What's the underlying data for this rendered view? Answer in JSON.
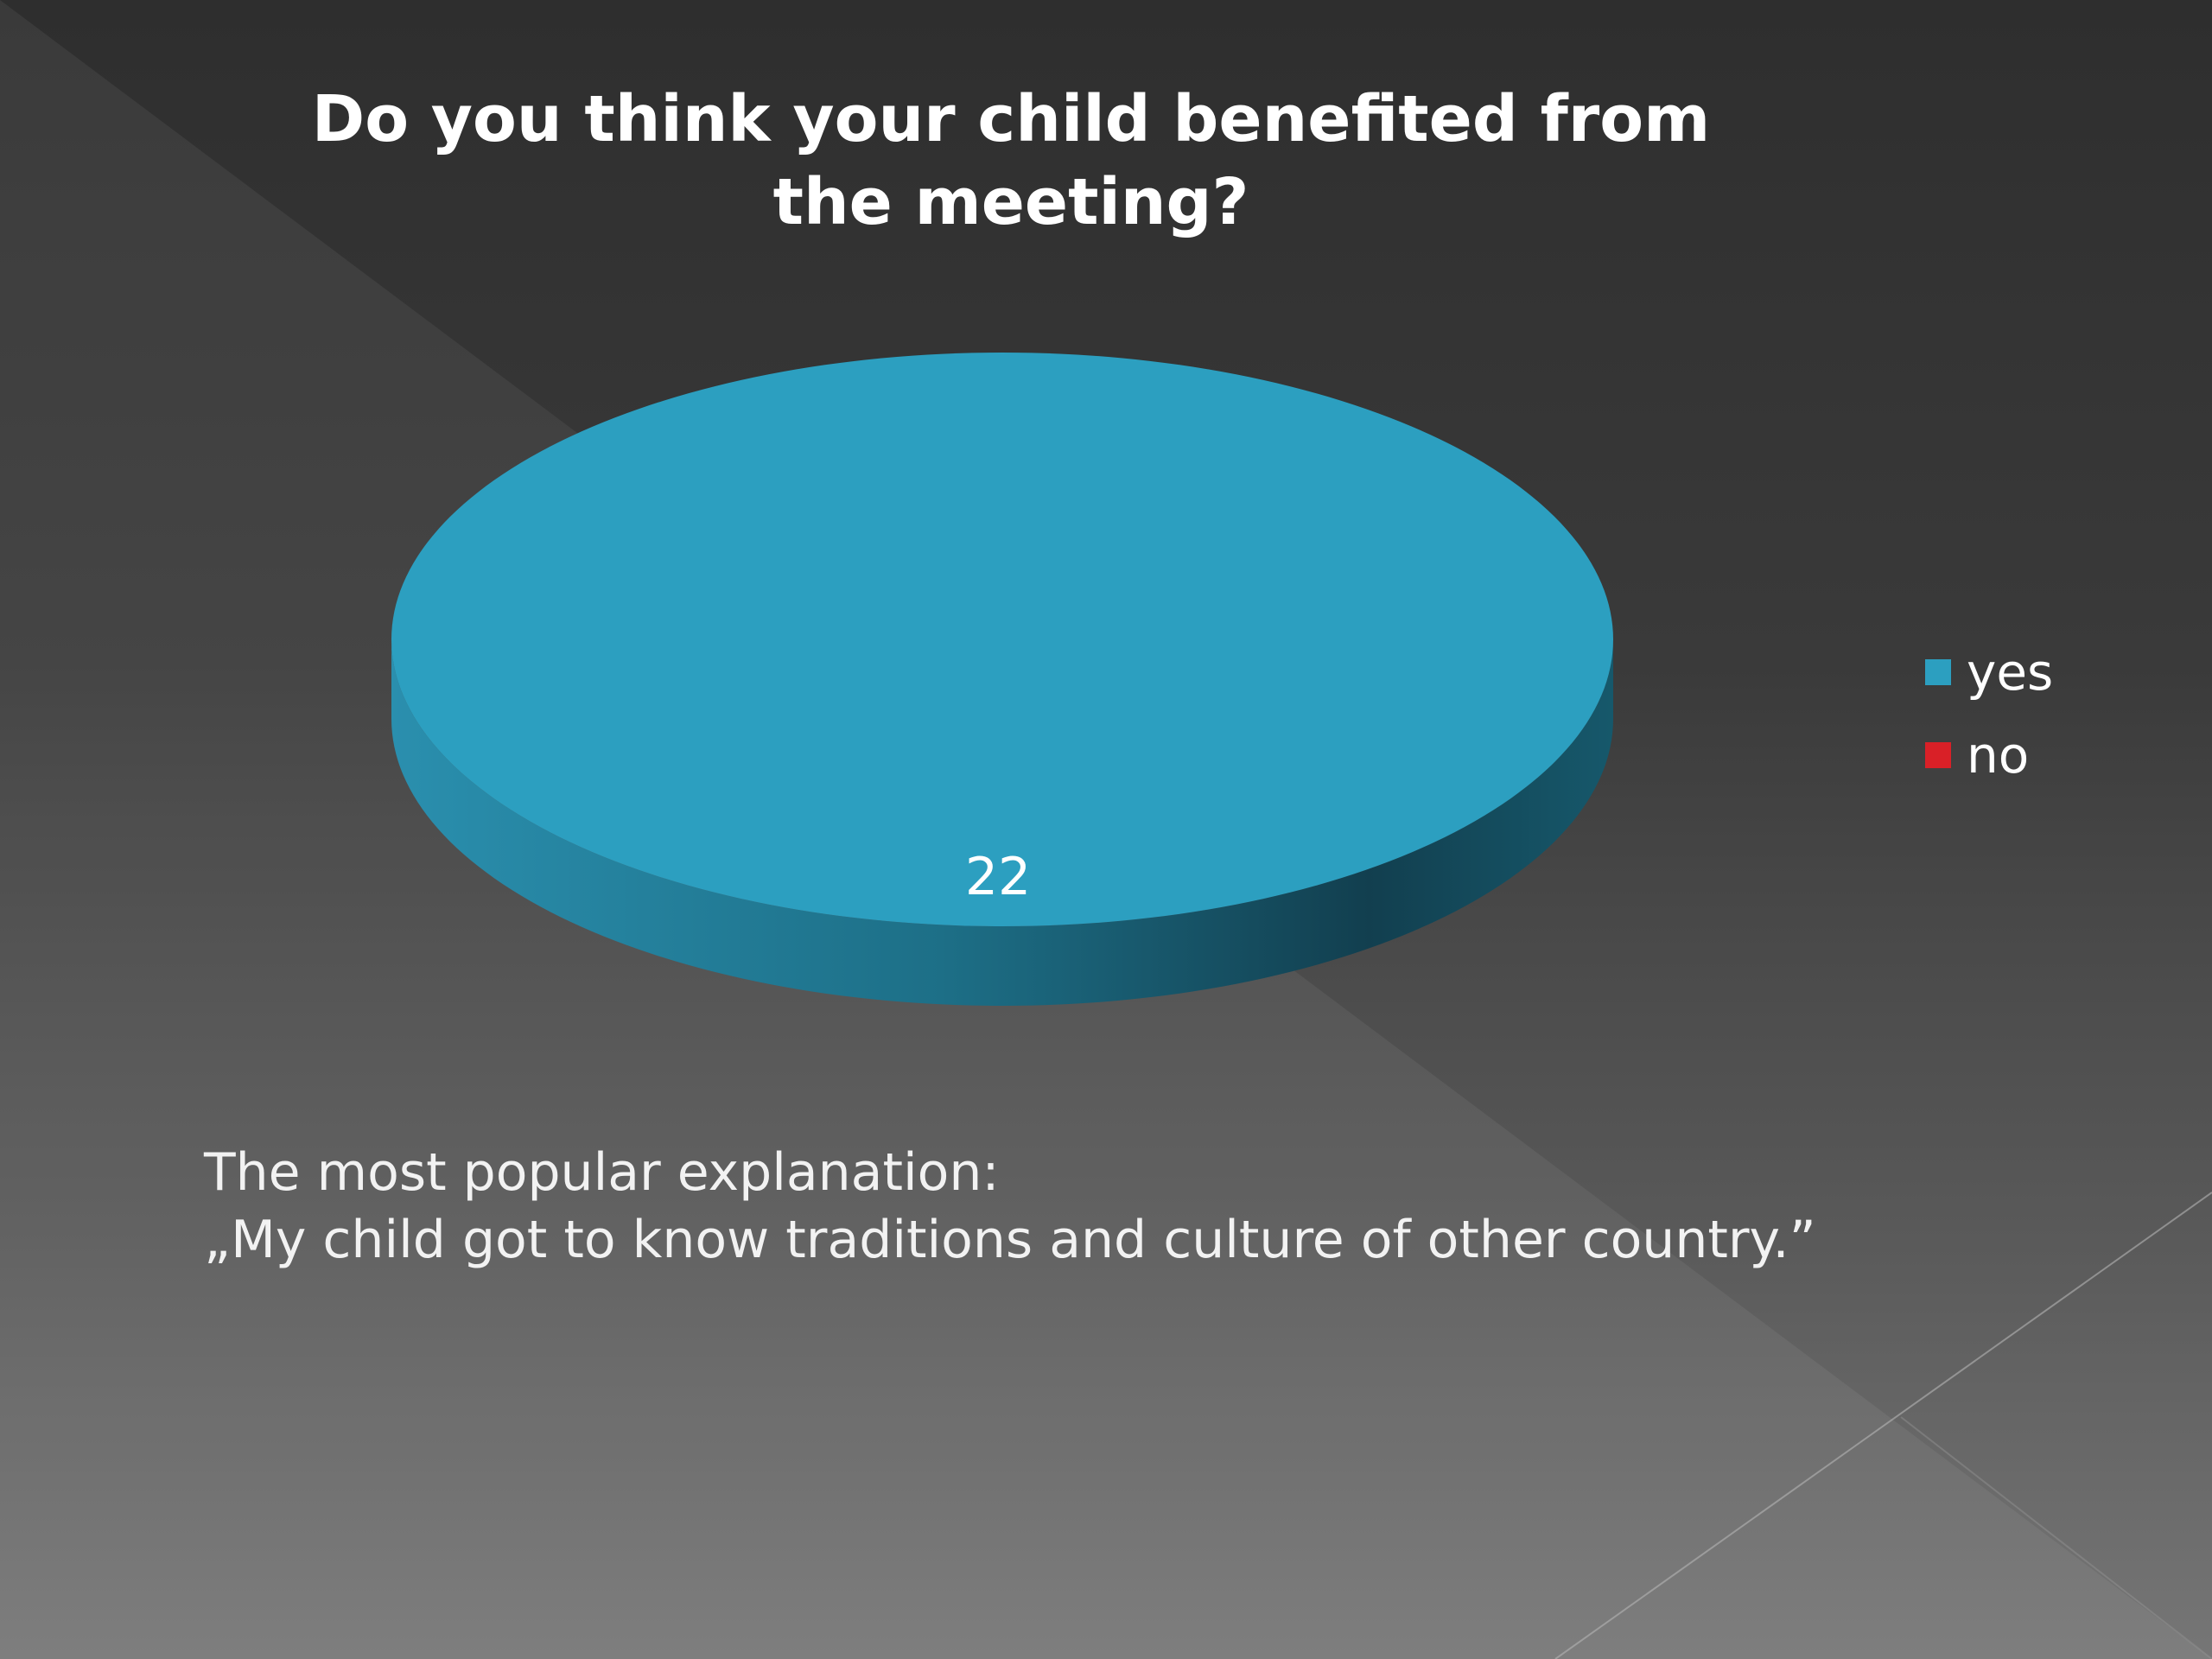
{
  "colors": {
    "yes": "#2c9fc0",
    "no": "#d92027"
  },
  "slide": {
    "note_line1": "The most popular explanation:",
    "note_line2": "„My child got to know traditions and culture of other country.”"
  },
  "chart_data": {
    "type": "pie",
    "title": "Do you think your child benefited from the meeting?",
    "categories": [
      "yes",
      "no"
    ],
    "values": [
      22,
      0
    ],
    "data_labels": [
      "22"
    ],
    "legend": "right",
    "style": "3d"
  }
}
